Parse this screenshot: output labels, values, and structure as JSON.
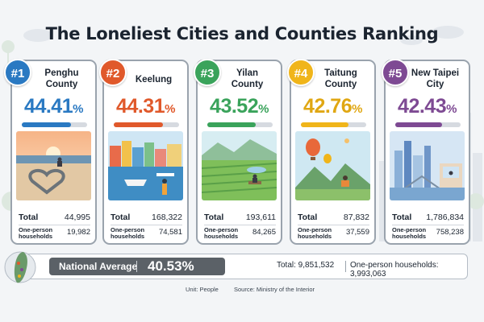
{
  "title": "The Loneliest Cities and Counties Ranking",
  "labels": {
    "total": "Total",
    "one_person_line1": "One-person",
    "one_person_line2": "households",
    "pct_unit": "%"
  },
  "colors": {
    "rank1": "#2a79c2",
    "rank2": "#e0592b",
    "rank3": "#3aa35b",
    "rank4": "#f0b51a",
    "rank5": "#7e4a93",
    "bar_track": "#d6dae0",
    "national_badge": "#5b6167"
  },
  "chart_data": {
    "type": "bar",
    "title": "The Loneliest Cities and Counties Ranking",
    "unit_note": "Unit: People",
    "source": "Source: Ministry of the Interior",
    "categories": [
      "Penghu County",
      "Keelung",
      "Yilan County",
      "Taitung County",
      "New Taipei City"
    ],
    "series": [
      {
        "values": [
          44.41,
          44.31,
          43.52,
          42.76,
          42.43
        ]
      }
    ],
    "ylim": [
      0,
      100
    ],
    "items": [
      {
        "rank": "#1",
        "name_line1": "Penghu",
        "name_line2": "County",
        "pct": "44.41",
        "pct_value": 44.41,
        "total": "44,995",
        "one_person": "19,982",
        "color": "#2a79c2"
      },
      {
        "rank": "#2",
        "name_line1": "Keelung",
        "name_line2": "",
        "pct": "44.31",
        "pct_value": 44.31,
        "total": "168,322",
        "one_person": "74,581",
        "color": "#e0592b"
      },
      {
        "rank": "#3",
        "name_line1": "Yilan",
        "name_line2": "County",
        "pct": "43.52",
        "pct_value": 43.52,
        "total": "193,611",
        "one_person": "84,265",
        "color": "#3aa35b"
      },
      {
        "rank": "#4",
        "name_line1": "Taitung",
        "name_line2": "County",
        "pct": "42.76",
        "pct_value": 42.76,
        "total": "87,832",
        "one_person": "37,559",
        "color": "#f0b51a"
      },
      {
        "rank": "#5",
        "name_line1": "New Taipei",
        "name_line2": "City",
        "pct": "42.43",
        "pct_value": 42.43,
        "total": "1,786,834",
        "one_person": "758,238",
        "color": "#7e4a93"
      }
    ],
    "national_average": {
      "label": "National Average",
      "value": "40.53%",
      "total_text": "Total: 9,851,532",
      "one_person_text": "One-person households: 3,993,063"
    }
  }
}
